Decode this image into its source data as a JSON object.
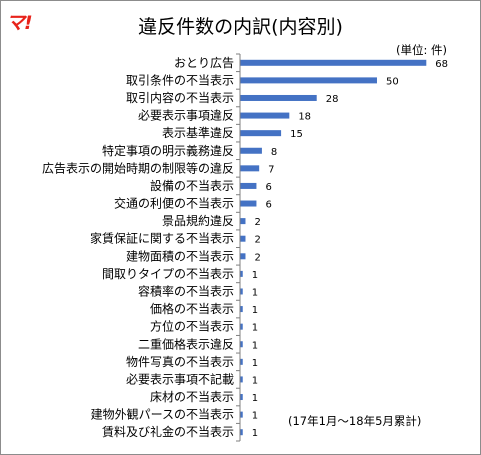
{
  "title": "違反件数の内訳(内容別)",
  "logo_text": "マ!",
  "unit_note": "(単位: 件)",
  "period_note": "(17年1月〜18年5月累計)",
  "colors": {
    "bar": "#4472c4",
    "axis": "#7f7f7f"
  },
  "chart_data": {
    "type": "bar",
    "orientation": "horizontal",
    "categories": [
      "おとり広告",
      "取引条件の不当表示",
      "取引内容の不当表示",
      "必要表示事項違反",
      "表示基準違反",
      "特定事項の明示義務違反",
      "広告表示の開始時期の制限等の違反",
      "設備の不当表示",
      "交通の利便の不当表示",
      "景品規約違反",
      "家賃保証に関する不当表示",
      "建物面積の不当表示",
      "間取りタイプの不当表示",
      "容積率の不当表示",
      "価格の不当表示",
      "方位の不当表示",
      "二重価格表示違反",
      "物件写真の不当表示",
      "必要表示事項不記載",
      "床材の不当表示",
      "建物外観パースの不当表示",
      "賃料及び礼金の不当表示"
    ],
    "values": [
      68,
      50,
      28,
      18,
      15,
      8,
      7,
      6,
      6,
      2,
      2,
      2,
      1,
      1,
      1,
      1,
      1,
      1,
      1,
      1,
      1,
      1
    ],
    "xlim": [
      0,
      73
    ],
    "grid": false,
    "legend": "none",
    "data_labels": true
  }
}
